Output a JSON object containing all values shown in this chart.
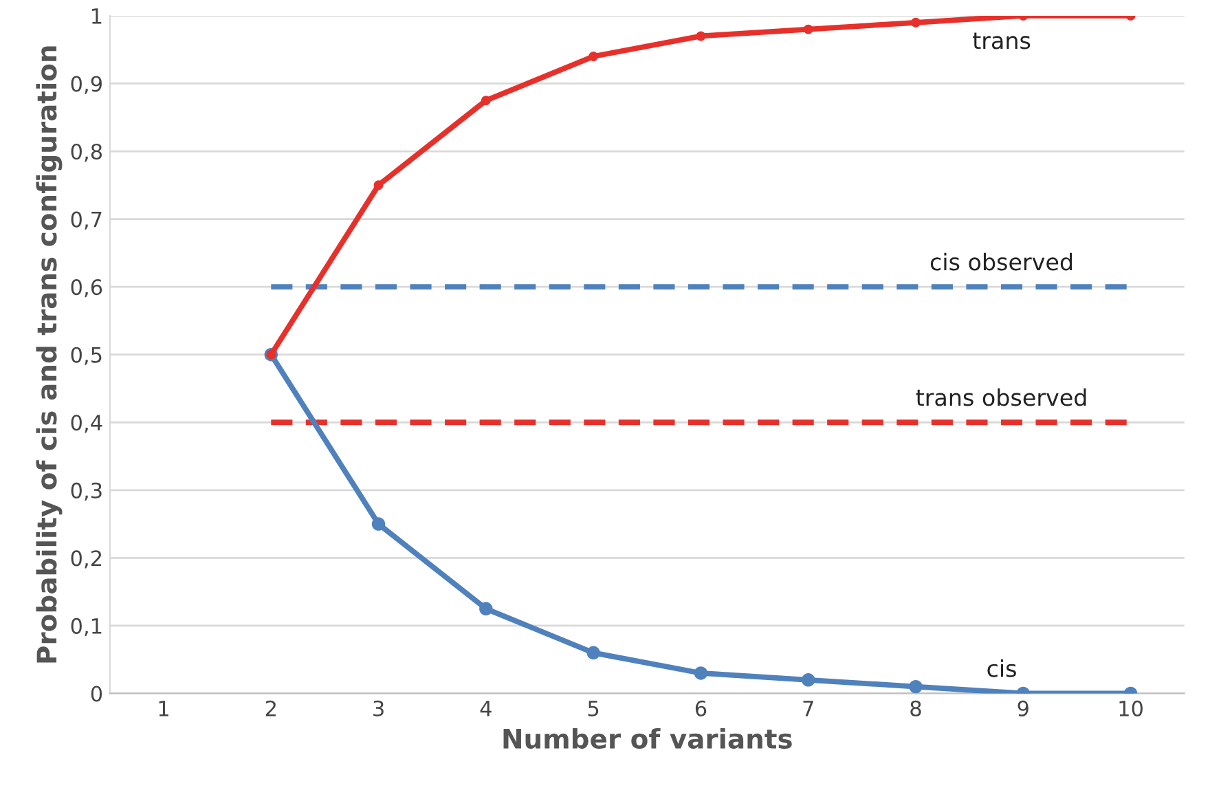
{
  "chart_data": {
    "type": "line",
    "xlabel": "Number of variants",
    "ylabel": "Probability of cis and trans configuration",
    "categories": [
      "1",
      "2",
      "3",
      "4",
      "5",
      "6",
      "7",
      "8",
      "9",
      "10"
    ],
    "series": [
      {
        "name": "trans",
        "color": "#e8302a",
        "marker": "circle",
        "line_style": "solid",
        "values": [
          null,
          0.5,
          0.75,
          0.875,
          0.94,
          0.97,
          0.98,
          0.99,
          1.0,
          1.0
        ]
      },
      {
        "name": "cis",
        "color": "#4f81bd",
        "marker": "circle",
        "line_style": "solid",
        "values": [
          null,
          0.5,
          0.25,
          0.125,
          0.06,
          0.03,
          0.02,
          0.01,
          0.0,
          0.0
        ]
      },
      {
        "name": "cis observed",
        "color": "#4f81bd",
        "marker": "none",
        "line_style": "dashed",
        "values": [
          null,
          0.6,
          0.6,
          0.6,
          0.6,
          0.6,
          0.6,
          0.6,
          0.6,
          0.6
        ]
      },
      {
        "name": "trans observed",
        "color": "#e8302a",
        "marker": "none",
        "line_style": "dashed",
        "values": [
          null,
          0.4,
          0.4,
          0.4,
          0.4,
          0.4,
          0.4,
          0.4,
          0.4,
          0.4
        ]
      }
    ],
    "ylim": [
      0,
      1
    ],
    "yticks": [
      0,
      {
        "value": 0.1,
        "label": "0,1"
      },
      {
        "value": 0.2,
        "label": "0,2"
      },
      {
        "value": 0.3,
        "label": "0,3"
      },
      {
        "value": 0.4,
        "label": "0,4"
      },
      {
        "value": 0.5,
        "label": "0,5"
      },
      {
        "value": 0.6,
        "label": "0,6"
      },
      {
        "value": 0.7,
        "label": "0,7"
      },
      {
        "value": 0.8,
        "label": "0,8"
      },
      {
        "value": 0.9,
        "label": "0,9"
      },
      1
    ],
    "grid": "y"
  }
}
